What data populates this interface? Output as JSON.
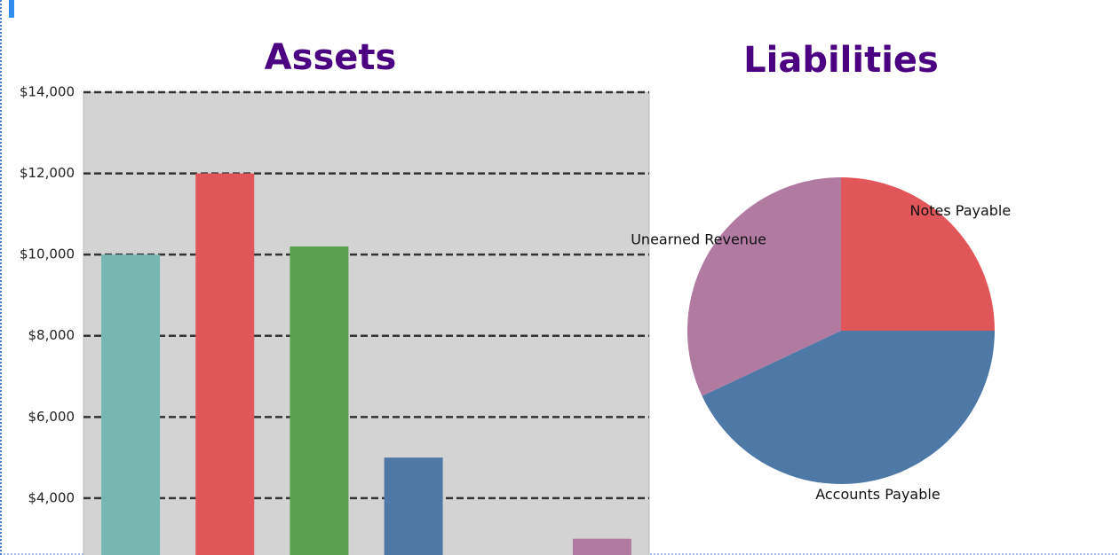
{
  "chart_data": [
    {
      "type": "bar",
      "title": "Assets",
      "categories": [
        null,
        null,
        null,
        null,
        null,
        null
      ],
      "values": [
        10000,
        12000,
        10200,
        5000,
        null,
        3000
      ],
      "colors": [
        "#76b7b2",
        "#e15759",
        "#59a14f",
        "#4e79a7",
        null,
        "#b07aa1"
      ],
      "ylim": [
        2600,
        14000
      ],
      "yticks": [
        {
          "value": 4000,
          "label": "$4,000"
        },
        {
          "value": 6000,
          "label": "$6,000"
        },
        {
          "value": 8000,
          "label": "$8,000"
        },
        {
          "value": 10000,
          "label": "$10,000"
        },
        {
          "value": 12000,
          "label": "$12,000"
        },
        {
          "value": 14000,
          "label": "$14,000"
        }
      ],
      "grid": true
    },
    {
      "type": "pie",
      "title": "Liabilities",
      "categories": [
        "Notes Payable",
        "Accounts Payable",
        "Unearned Revenue"
      ],
      "values": [
        25,
        43,
        32
      ],
      "colors": [
        "#e15759",
        "#4e79a7",
        "#b07aa1"
      ]
    }
  ]
}
